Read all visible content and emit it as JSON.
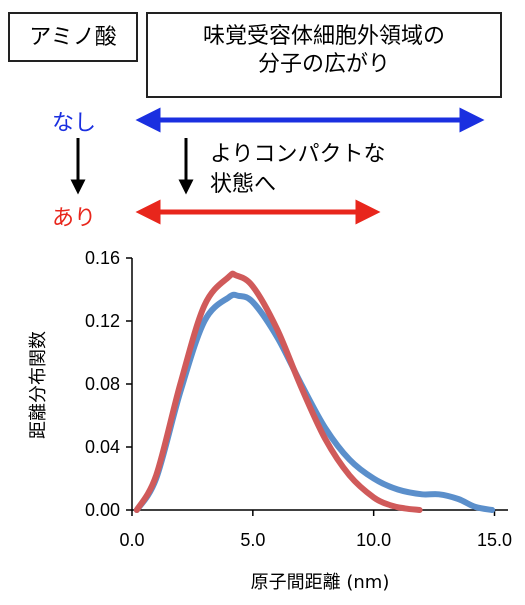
{
  "header": {
    "amino_acid_label": "アミノ酸",
    "region_label_line1": "味覚受容体細胞外領域の",
    "region_label_line2": "分子の広がり"
  },
  "legend": {
    "none_label": "なし",
    "with_label": "あり",
    "note_line1": "よりコンパクトな",
    "note_line2": "状態へ"
  },
  "colors": {
    "none": "#1a2fe0",
    "with": "#e8261c",
    "curve_none": "#5b8fcb",
    "curve_with": "#d05a5a"
  },
  "chart_data": {
    "type": "line",
    "xlabel": "原子間距離 (nm)",
    "ylabel": "距離分布関数",
    "xlim": [
      0,
      15.5
    ],
    "ylim": [
      0,
      0.16
    ],
    "xticks": [
      "0.0",
      "5.0",
      "10.0",
      "15.0"
    ],
    "yticks": [
      "0.00",
      "0.04",
      "0.08",
      "0.12",
      "0.16"
    ],
    "grid": false,
    "series": [
      {
        "id": "none",
        "x": [
          0.2,
          1.0,
          2.0,
          3.0,
          4.0,
          4.4,
          5.0,
          6.0,
          7.0,
          8.0,
          9.0,
          10.0,
          11.0,
          12.0,
          12.7,
          13.5,
          14.2,
          14.9
        ],
        "y": [
          0.0,
          0.02,
          0.075,
          0.12,
          0.135,
          0.136,
          0.132,
          0.11,
          0.08,
          0.052,
          0.032,
          0.02,
          0.013,
          0.01,
          0.01,
          0.007,
          0.002,
          0.0
        ]
      },
      {
        "id": "with",
        "x": [
          0.2,
          1.0,
          2.0,
          3.0,
          4.0,
          4.3,
          5.0,
          6.0,
          7.0,
          8.0,
          9.0,
          10.0,
          10.7,
          11.3,
          11.9
        ],
        "y": [
          0.0,
          0.022,
          0.08,
          0.13,
          0.148,
          0.149,
          0.142,
          0.115,
          0.078,
          0.045,
          0.022,
          0.008,
          0.003,
          0.001,
          0.0
        ]
      }
    ]
  }
}
